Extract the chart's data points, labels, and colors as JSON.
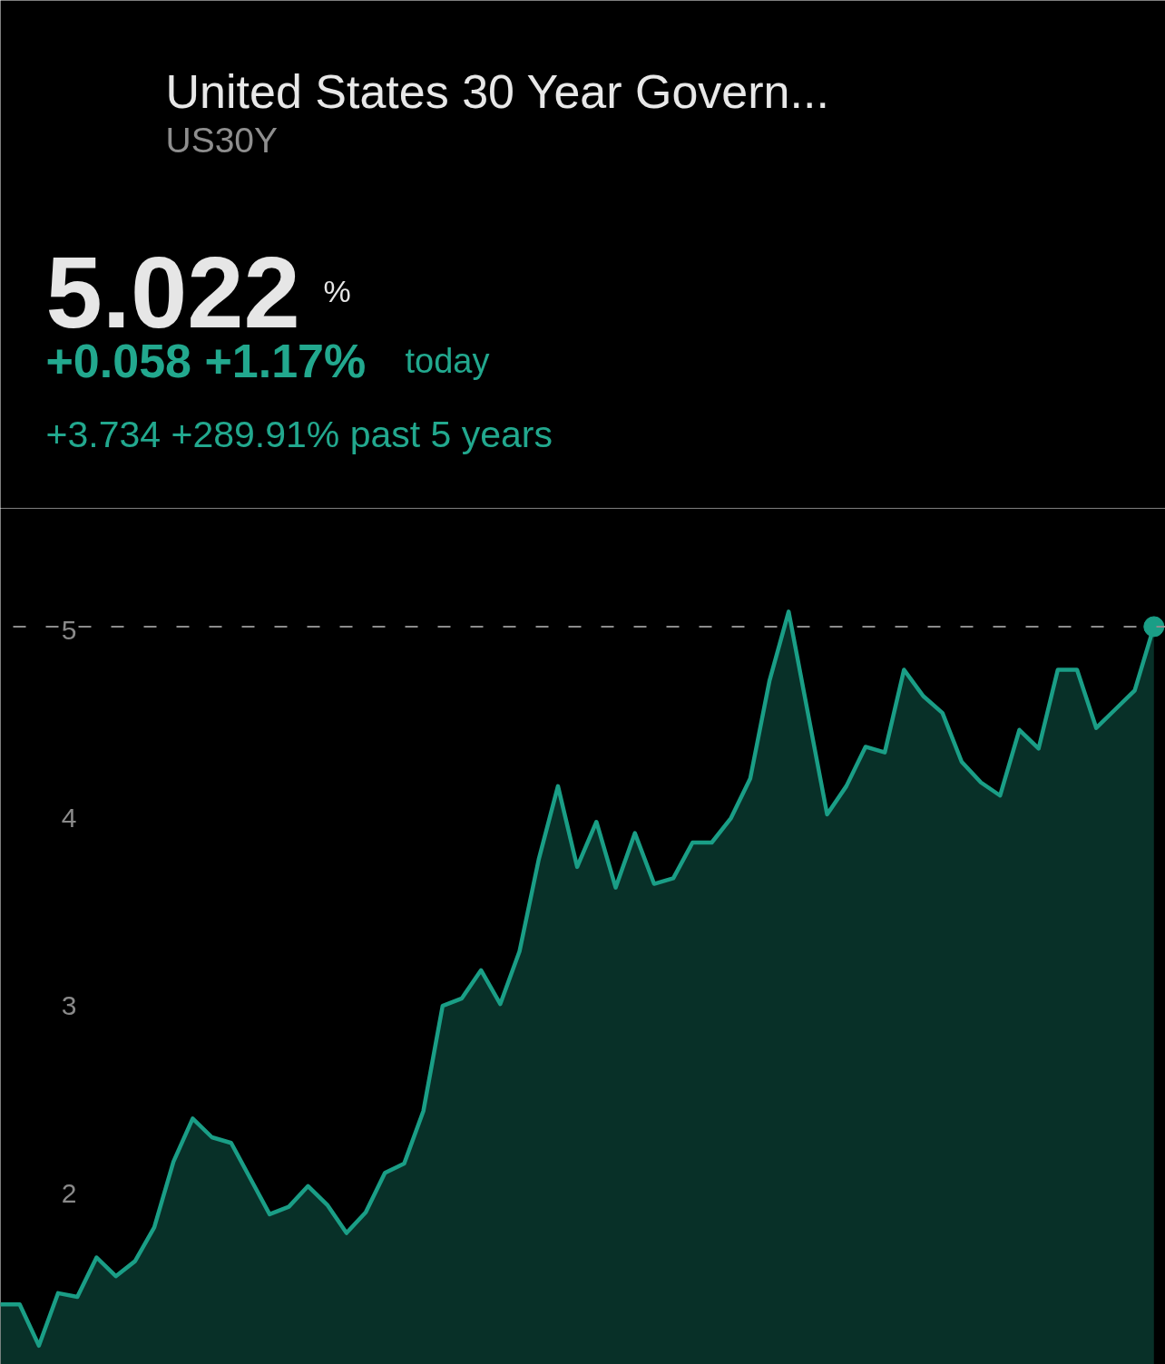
{
  "chart_data": {
    "type": "area",
    "title": "United States 30 Year Govern...",
    "subtitle": "US30Y",
    "annotations": [
      "5.022",
      "%",
      "+0.058 +1.17%",
      "today",
      "+3.734 +289.91% past 5 years"
    ],
    "categories": [
      null,
      null,
      null,
      null,
      null,
      null,
      null,
      null,
      null,
      null,
      null,
      null,
      null,
      null,
      null,
      null,
      null,
      null,
      null,
      null,
      null,
      null,
      null,
      null,
      null,
      null,
      null,
      null,
      null,
      null,
      null,
      null,
      null,
      null,
      null,
      null,
      null,
      null,
      null,
      null,
      null,
      null,
      null,
      null,
      null,
      null,
      null,
      null,
      null,
      null,
      null,
      null,
      null,
      null,
      null,
      null,
      null,
      null,
      null,
      null,
      null
    ],
    "ylim": [
      1.09,
      5.65
    ],
    "yticks": [
      2,
      3,
      4,
      5
    ],
    "ref_lines": [
      {
        "axis": "y",
        "value": 5.02,
        "color": "#8c8c8c",
        "line_style": "dashed"
      }
    ],
    "series": [
      {
        "color": "#1a9e86",
        "values": [
          1.41,
          1.41,
          1.19,
          1.47,
          1.45,
          1.66,
          1.56,
          1.64,
          1.82,
          2.17,
          2.4,
          2.3,
          2.27,
          2.08,
          1.89,
          1.93,
          2.04,
          1.94,
          1.79,
          1.9,
          2.11,
          2.16,
          2.44,
          3.0,
          3.04,
          3.19,
          3.01,
          3.29,
          3.78,
          4.17,
          3.74,
          3.98,
          3.63,
          3.92,
          3.65,
          3.68,
          3.87,
          3.87,
          4.0,
          4.21,
          4.73,
          5.1,
          4.56,
          4.02,
          4.17,
          4.38,
          4.35,
          4.79,
          4.65,
          4.56,
          4.3,
          4.19,
          4.12,
          4.47,
          4.37,
          4.79,
          4.79,
          4.48,
          4.58,
          4.68,
          5.02
        ]
      },
      {
        "type": "scatter",
        "marker": "circle",
        "color": "#1a9e86",
        "values": [
          null,
          null,
          null,
          null,
          null,
          null,
          null,
          null,
          null,
          null,
          null,
          null,
          null,
          null,
          null,
          null,
          null,
          null,
          null,
          null,
          null,
          null,
          null,
          null,
          null,
          null,
          null,
          null,
          null,
          null,
          null,
          null,
          null,
          null,
          null,
          null,
          null,
          null,
          null,
          null,
          null,
          null,
          null,
          null,
          null,
          null,
          null,
          null,
          null,
          null,
          null,
          null,
          null,
          null,
          null,
          null,
          null,
          null,
          null,
          null,
          5.02
        ]
      }
    ]
  }
}
